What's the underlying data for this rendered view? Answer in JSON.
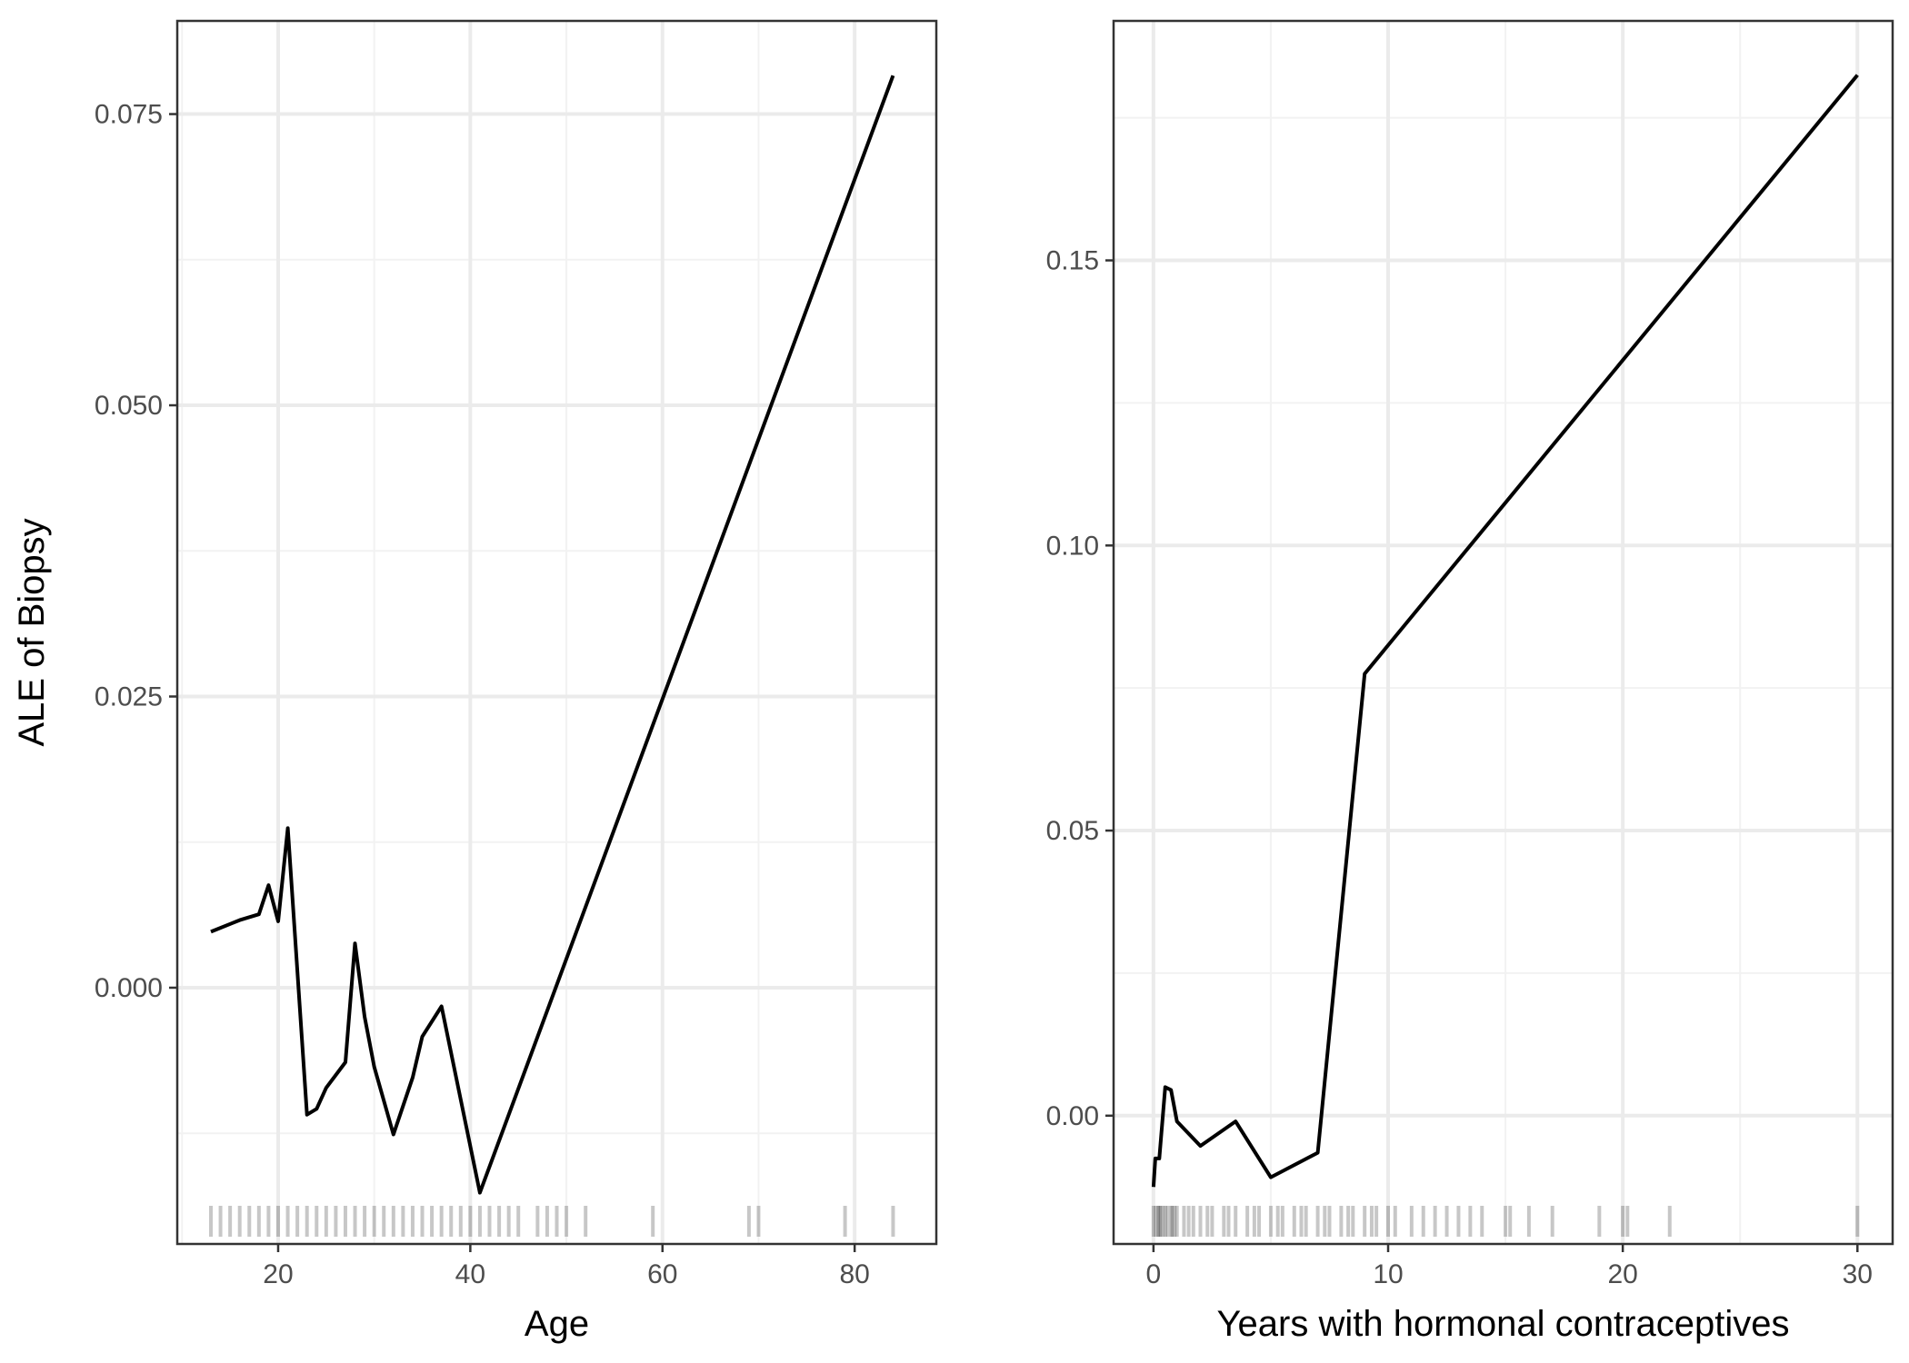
{
  "colors": {
    "panel_border": "#333333",
    "grid_major": "#ebebeb",
    "grid_minor": "#f2f2f2",
    "line": "#000000",
    "rug": "#000000",
    "tick_text": "#4d4d4d"
  },
  "chart_data": [
    {
      "type": "line",
      "xlabel": "Age",
      "ylabel": "ALE of Biopsy",
      "xlim": [
        9.5,
        88.5
      ],
      "ylim": [
        -0.022,
        0.083
      ],
      "xticks": [
        20,
        40,
        60,
        80
      ],
      "xtick_labels": [
        "20",
        "40",
        "60",
        "80"
      ],
      "xminor": [
        10,
        30,
        50,
        70
      ],
      "yticks": [
        0.0,
        0.025,
        0.05,
        0.075
      ],
      "ytick_labels": [
        "0.000",
        "0.025",
        "0.050",
        "0.075"
      ],
      "yminor": [
        -0.0125,
        0.0125,
        0.0375,
        0.0625
      ],
      "grid": true,
      "x": [
        13,
        16,
        18,
        19,
        20,
        21,
        23,
        24,
        25,
        27,
        28,
        29,
        30,
        32,
        34,
        35,
        37,
        41,
        84
      ],
      "y": [
        0.0048,
        0.0058,
        0.0063,
        0.0088,
        0.0057,
        0.0137,
        -0.0109,
        -0.0104,
        -0.0086,
        -0.0064,
        0.0038,
        -0.0025,
        -0.0068,
        -0.0126,
        -0.0077,
        -0.0042,
        -0.0016,
        -0.0176,
        0.0783
      ],
      "rug": [
        13,
        14,
        15,
        16,
        17,
        18,
        19,
        20,
        21,
        22,
        23,
        24,
        25,
        26,
        27,
        28,
        29,
        30,
        31,
        32,
        33,
        34,
        35,
        36,
        37,
        38,
        39,
        40,
        41,
        42,
        43,
        44,
        45,
        47,
        48,
        49,
        50,
        52,
        59,
        69,
        70,
        79,
        84
      ]
    },
    {
      "type": "line",
      "xlabel": "Years with hormonal contraceptives",
      "ylabel": "",
      "xlim": [
        -1.7,
        31.5
      ],
      "ylim": [
        -0.0225,
        0.192
      ],
      "xticks": [
        0,
        10,
        20,
        30
      ],
      "xtick_labels": [
        "0",
        "10",
        "20",
        "30"
      ],
      "xminor": [
        5,
        15,
        25
      ],
      "yticks": [
        0.0,
        0.05,
        0.1,
        0.15
      ],
      "ytick_labels": [
        "0.00",
        "0.05",
        "0.10",
        "0.15"
      ],
      "yminor": [
        0.025,
        0.075,
        0.125,
        0.175
      ],
      "grid": true,
      "x": [
        0,
        0.08,
        0.25,
        0.5,
        0.75,
        1,
        2,
        3.5,
        5,
        7,
        9,
        30
      ],
      "y": [
        -0.0125,
        -0.0075,
        -0.0075,
        0.005,
        0.0045,
        -0.001,
        -0.0053,
        -0.001,
        -0.0108,
        -0.0065,
        0.0775,
        0.1825
      ],
      "rug": [
        0,
        0.1,
        0.2,
        0.25,
        0.3,
        0.4,
        0.5,
        0.6,
        0.75,
        0.8,
        0.9,
        1,
        1.3,
        1.5,
        1.7,
        2,
        2.3,
        2.5,
        3,
        3.2,
        3.5,
        4,
        4.3,
        4.5,
        5,
        5.3,
        5.5,
        6,
        6.3,
        6.5,
        7,
        7.3,
        7.5,
        8,
        8.3,
        8.5,
        9,
        9.3,
        9.5,
        10,
        10.3,
        11,
        11.5,
        12,
        12.5,
        13,
        13.5,
        14,
        15,
        15.2,
        16,
        17,
        19,
        20,
        20.2,
        22,
        30
      ]
    }
  ]
}
